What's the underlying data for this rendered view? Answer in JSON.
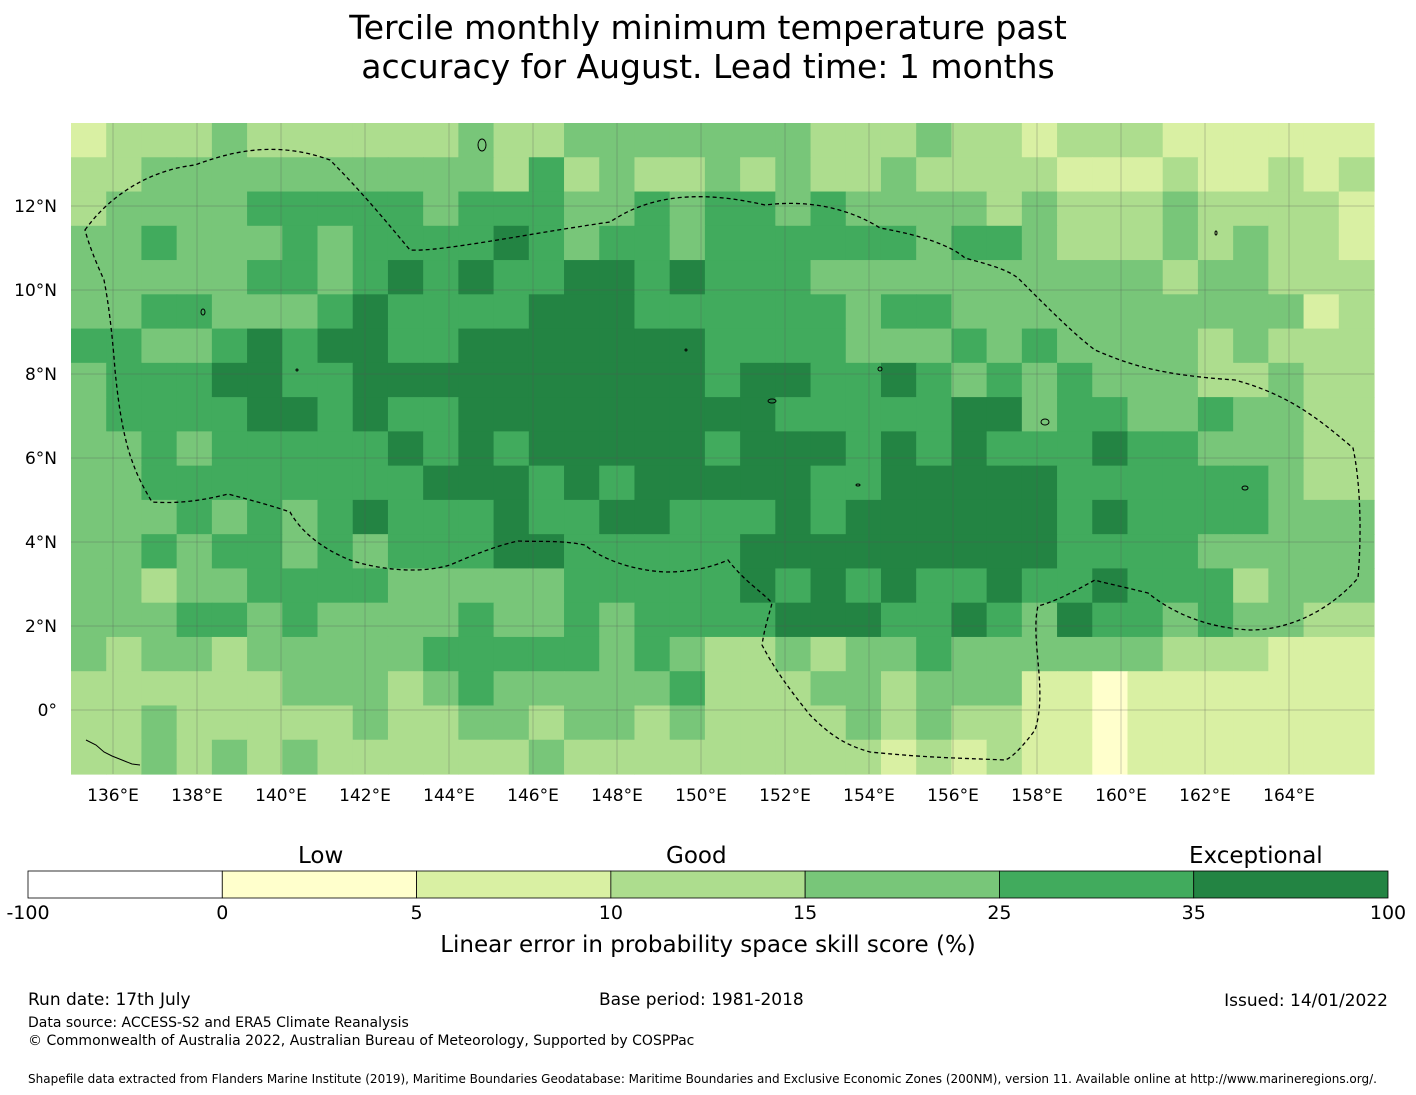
{
  "title_line1": "Tercile monthly minimum temperature past",
  "title_line2": "accuracy for August. Lead time: 1 months",
  "map": {
    "lon_labels": [
      "136°E",
      "138°E",
      "140°E",
      "142°E",
      "144°E",
      "146°E",
      "148°E",
      "150°E",
      "152°E",
      "154°E",
      "156°E",
      "158°E",
      "160°E",
      "162°E",
      "164°E"
    ],
    "lat_labels": [
      "12°N",
      "10°N",
      "8°N",
      "6°N",
      "4°N",
      "2°N",
      "0°"
    ],
    "colors": {
      "c0": "#ffffcc",
      "c1": "#d9f0a3",
      "c2": "#addd8e",
      "c3": "#78c679",
      "c4": "#41ab5d",
      "c5": "#238443",
      "grid": "#555555",
      "outline": "#000000"
    }
  },
  "colorbar": {
    "category_low": "Low",
    "category_good": "Good",
    "category_exceptional": "Exceptional",
    "ticks": [
      "-100",
      "0",
      "5",
      "10",
      "15",
      "25",
      "35",
      "100"
    ],
    "segment_colors": [
      "#ffffff",
      "#ffffcc",
      "#d9f0a3",
      "#addd8e",
      "#78c679",
      "#41ab5d",
      "#238443"
    ],
    "title": "Linear error in probability space skill score (%)"
  },
  "footer": {
    "run_date": "Run date: 17th July",
    "base_period": "Base period: 1981-2018",
    "issued": "Issued: 14/01/2022",
    "data_source": "Data source: ACCESS-S2 and ERA5 Climate Reanalysis",
    "copyright": "© Commonwealth of Australia 2022, Australian Bureau of Meteorology, Supported by COSPPac",
    "shapefile": "Shapefile data extracted from Flanders Marine Institute (2019), Maritime Boundaries Geodatabase: Maritime Boundaries and Exclusive Economic Zones (200NM), version 11. Available online at http://www.marineregions.org/."
  }
}
